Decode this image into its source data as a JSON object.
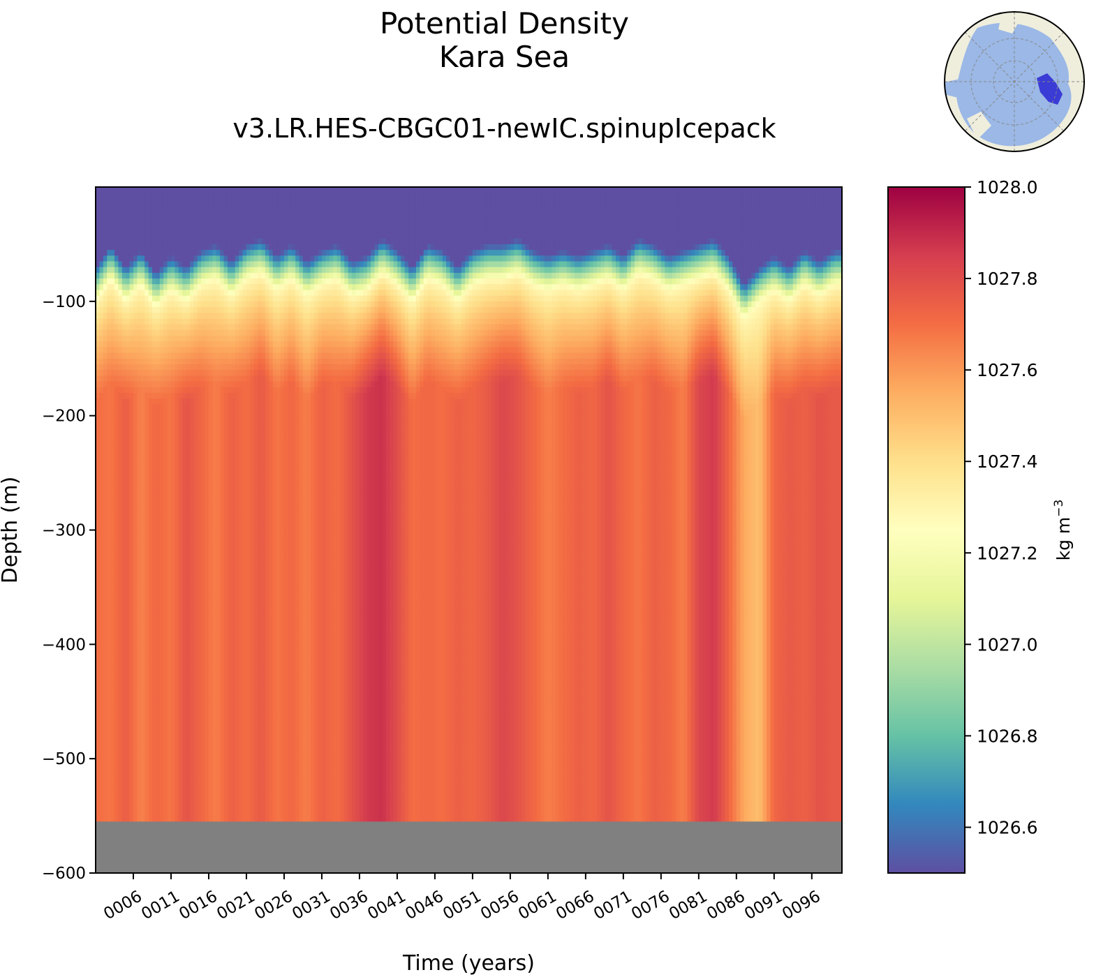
{
  "chart_data": {
    "type": "heatmap",
    "title": "Potential Density",
    "region": "Kara Sea",
    "subtitle": "v3.LR.HES-CBGC01-newIC.spinupIcepack",
    "xlabel": "Time (years)",
    "ylabel": "Depth (m)",
    "xlim": [
      1,
      100
    ],
    "ylim": [
      -600,
      0
    ],
    "x_tick_values": [
      6,
      11,
      16,
      21,
      26,
      31,
      36,
      41,
      46,
      51,
      56,
      61,
      66,
      71,
      76,
      81,
      86,
      91,
      96
    ],
    "x_tick_labels": [
      "0006",
      "0011",
      "0016",
      "0021",
      "0026",
      "0031",
      "0036",
      "0041",
      "0046",
      "0051",
      "0056",
      "0061",
      "0066",
      "0071",
      "0076",
      "0081",
      "0086",
      "0091",
      "0096"
    ],
    "y_ticks": [
      -100,
      -200,
      -300,
      -400,
      -500,
      -600
    ],
    "y_tick_labels": [
      "−100",
      "−200",
      "−300",
      "−400",
      "−500",
      "−600"
    ],
    "colorbar": {
      "label": "kg m",
      "label_superscript": "−3",
      "range": [
        1026.5,
        1028.0
      ],
      "ticks": [
        1026.6,
        1026.8,
        1027.0,
        1027.2,
        1027.4,
        1027.6,
        1027.8,
        1028.0
      ],
      "tick_labels": [
        "1026.6",
        "1026.8",
        "1027.0",
        "1027.2",
        "1027.4",
        "1027.6",
        "1027.8",
        "1028.0"
      ],
      "colormap": "Spectral_r"
    },
    "bottom_depth": -555,
    "mask_color": "#808080",
    "mixed_layer_depth": {
      "years": [
        1,
        3,
        5,
        7,
        9,
        11,
        13,
        15,
        17,
        19,
        21,
        23,
        25,
        27,
        29,
        31,
        33,
        35,
        37,
        39,
        41,
        43,
        45,
        47,
        49,
        51,
        53,
        55,
        57,
        59,
        61,
        63,
        65,
        67,
        69,
        71,
        73,
        75,
        77,
        79,
        81,
        83,
        85,
        87,
        89,
        91,
        93,
        95,
        97,
        99
      ],
      "values": [
        -75,
        -55,
        -75,
        -60,
        -80,
        -65,
        -75,
        -60,
        -55,
        -70,
        -55,
        -50,
        -65,
        -55,
        -70,
        -60,
        -55,
        -70,
        -65,
        -50,
        -60,
        -75,
        -55,
        -60,
        -75,
        -60,
        -55,
        -55,
        -50,
        -60,
        -65,
        -60,
        -65,
        -60,
        -55,
        -65,
        -50,
        -55,
        -65,
        -60,
        -55,
        -50,
        -65,
        -90,
        -75,
        -65,
        -75,
        -60,
        -70,
        -60
      ]
    },
    "deep_density": {
      "years": [
        1,
        3,
        5,
        7,
        9,
        11,
        13,
        15,
        17,
        19,
        21,
        23,
        25,
        27,
        29,
        31,
        33,
        35,
        37,
        39,
        41,
        43,
        45,
        47,
        49,
        51,
        53,
        55,
        57,
        59,
        61,
        63,
        65,
        67,
        69,
        71,
        73,
        75,
        77,
        79,
        81,
        83,
        85,
        87,
        89,
        91,
        93,
        95,
        97,
        99
      ],
      "values": [
        1027.7,
        1027.68,
        1027.75,
        1027.65,
        1027.72,
        1027.68,
        1027.78,
        1027.72,
        1027.66,
        1027.74,
        1027.7,
        1027.76,
        1027.68,
        1027.72,
        1027.66,
        1027.74,
        1027.7,
        1027.78,
        1027.86,
        1027.88,
        1027.8,
        1027.7,
        1027.72,
        1027.7,
        1027.74,
        1027.72,
        1027.76,
        1027.82,
        1027.78,
        1027.72,
        1027.66,
        1027.7,
        1027.74,
        1027.72,
        1027.78,
        1027.72,
        1027.68,
        1027.74,
        1027.72,
        1027.66,
        1027.82,
        1027.86,
        1027.72,
        1027.56,
        1027.5,
        1027.72,
        1027.76,
        1027.74,
        1027.78,
        1027.76
      ]
    }
  }
}
